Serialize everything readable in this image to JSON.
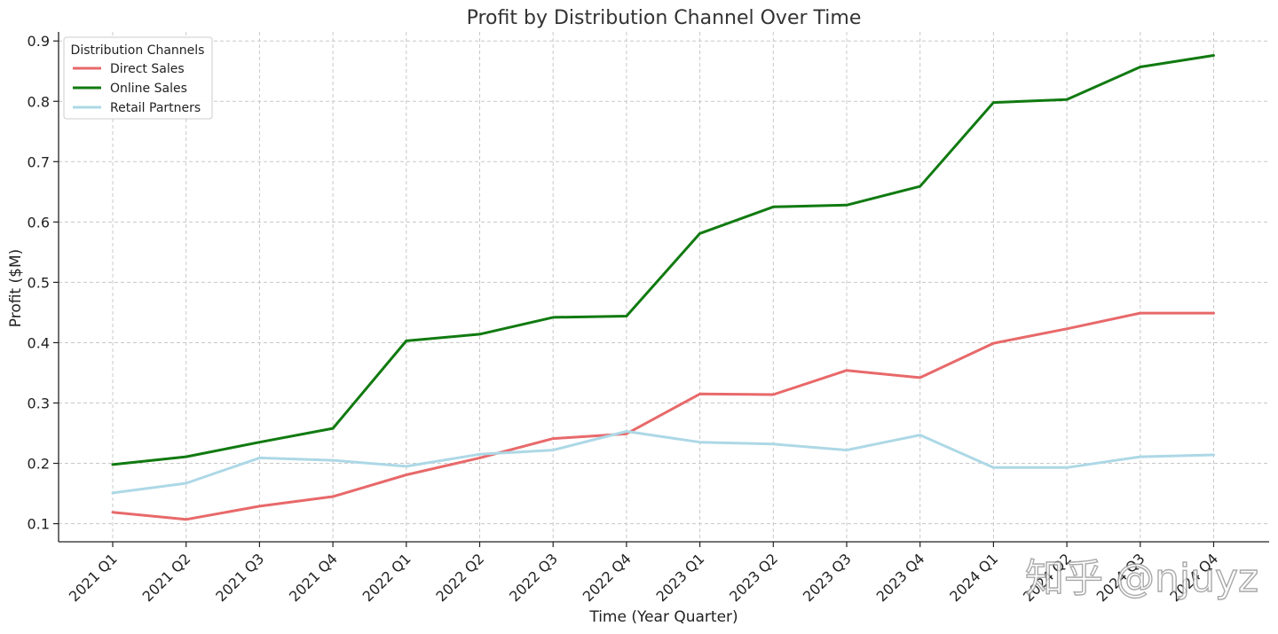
{
  "chart_data": {
    "type": "line",
    "title": "Profit by Distribution Channel Over Time",
    "xlabel": "Time (Year Quarter)",
    "ylabel": "Profit ($M)",
    "categories": [
      "2021 Q1",
      "2021 Q2",
      "2021 Q3",
      "2021 Q4",
      "2022 Q1",
      "2022 Q2",
      "2022 Q3",
      "2022 Q4",
      "2023 Q1",
      "2023 Q2",
      "2023 Q3",
      "2023 Q4",
      "2024 Q1",
      "2024 Q2",
      "2024 Q3",
      "2024 Q4"
    ],
    "yticks": [
      "0.1",
      "0.2",
      "0.3",
      "0.4",
      "0.5",
      "0.6",
      "0.7",
      "0.8",
      "0.9"
    ],
    "ylim": [
      0.07,
      0.915
    ],
    "grid": true,
    "legend": {
      "title": "Distribution Channels",
      "placement": "top-left"
    },
    "series": [
      {
        "name": "Direct Sales",
        "color": "#e8696a",
        "values": [
          0.119,
          0.107,
          0.129,
          0.145,
          0.181,
          0.209,
          0.241,
          0.249,
          0.315,
          0.314,
          0.354,
          0.342,
          0.399,
          0.423,
          0.449,
          0.449
        ]
      },
      {
        "name": "Online Sales",
        "color": "#107a10",
        "values": [
          0.198,
          0.211,
          0.235,
          0.258,
          0.403,
          0.414,
          0.442,
          0.444,
          0.581,
          0.625,
          0.628,
          0.659,
          0.798,
          0.803,
          0.857,
          0.876
        ]
      },
      {
        "name": "Retail Partners",
        "color": "#add8e6",
        "values": [
          0.151,
          0.167,
          0.209,
          0.205,
          0.195,
          0.215,
          0.222,
          0.253,
          0.235,
          0.232,
          0.222,
          0.247,
          0.193,
          0.193,
          0.211,
          0.214
        ]
      }
    ]
  },
  "watermark": "知乎 @njuyz"
}
